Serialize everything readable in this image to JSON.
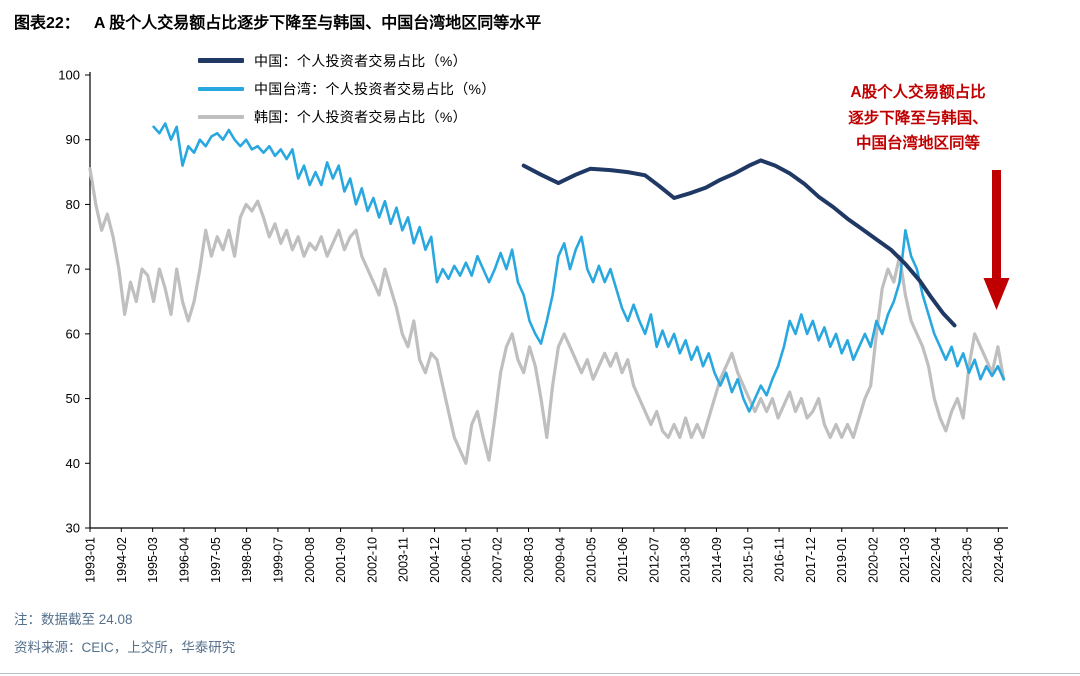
{
  "header": {
    "fig_label": "图表22：",
    "title": "A 股个人交易额占比逐步下降至与韩国、中国台湾地区同等水平"
  },
  "annotation": {
    "lines": [
      "A股个人交易额占比",
      "逐步下降至与韩国、",
      "中国台湾地区同等"
    ],
    "color": "#C00000",
    "arrow_color": "#C00000"
  },
  "notes": {
    "note1": "注：数据截至 24.08",
    "note2": "资料来源：CEIC，上交所，华泰研究"
  },
  "chart_data": {
    "type": "line",
    "title": "A 股个人交易额占比逐步下降至与韩国、中国台湾地区同等水平",
    "xlabel": "",
    "ylabel": "",
    "ylim": [
      30,
      100
    ],
    "y_ticks": [
      30,
      40,
      50,
      60,
      70,
      80,
      90,
      100
    ],
    "grid": false,
    "legend_position": "inside-top-left",
    "x_range": [
      1993.0,
      2024.75
    ],
    "x_tick_start": 1993.0,
    "x_tick_step_years": 1.0833333,
    "x_tick_labels": [
      "1993-01",
      "1994-02",
      "1995-03",
      "1996-04",
      "1997-05",
      "1998-06",
      "1999-07",
      "2000-08",
      "2001-09",
      "2002-10",
      "2003-11",
      "2004-12",
      "2006-01",
      "2007-02",
      "2008-03",
      "2009-04",
      "2010-05",
      "2011-06",
      "2012-07",
      "2013-08",
      "2014-09",
      "2015-10",
      "2016-11",
      "2017-12",
      "2019-01",
      "2020-02",
      "2021-03",
      "2022-04",
      "2023-05",
      "2024-06"
    ],
    "series": [
      {
        "id": "china",
        "name": "中国：个人投资者交易占比（%）",
        "color": "#1F3864",
        "width": 4,
        "points": [
          [
            2008.0,
            86.0
          ],
          [
            2008.6,
            84.6
          ],
          [
            2009.2,
            83.3
          ],
          [
            2009.8,
            84.6
          ],
          [
            2010.3,
            85.5
          ],
          [
            2011.0,
            85.3
          ],
          [
            2011.6,
            85.0
          ],
          [
            2012.2,
            84.5
          ],
          [
            2012.7,
            82.8
          ],
          [
            2013.2,
            81.0
          ],
          [
            2013.8,
            81.8
          ],
          [
            2014.3,
            82.6
          ],
          [
            2014.8,
            83.8
          ],
          [
            2015.3,
            84.8
          ],
          [
            2015.8,
            86.0
          ],
          [
            2016.2,
            86.8
          ],
          [
            2016.7,
            86.0
          ],
          [
            2017.2,
            84.8
          ],
          [
            2017.7,
            83.2
          ],
          [
            2018.2,
            81.2
          ],
          [
            2018.7,
            79.6
          ],
          [
            2019.2,
            77.8
          ],
          [
            2019.7,
            76.2
          ],
          [
            2020.2,
            74.6
          ],
          [
            2020.7,
            73.0
          ],
          [
            2021.2,
            70.8
          ],
          [
            2021.7,
            68.2
          ],
          [
            2022.1,
            65.6
          ],
          [
            2022.5,
            63.2
          ],
          [
            2022.9,
            61.3
          ]
        ]
      },
      {
        "id": "taiwan",
        "name": "中国台湾：个人投资者交易占比（%）",
        "color": "#29A8E0",
        "width": 2.6,
        "x_start": 1995.2,
        "x_step": 0.2,
        "values": [
          92,
          91,
          92.5,
          90,
          92,
          86,
          89,
          88,
          90,
          89,
          90.5,
          91,
          90,
          91.5,
          90,
          89,
          90,
          88.5,
          89,
          88,
          89,
          87.5,
          88.5,
          87,
          88.5,
          84,
          86,
          83,
          85,
          83,
          86.5,
          84,
          86,
          82,
          84,
          80,
          82.5,
          79,
          81,
          78,
          80.5,
          77,
          79.5,
          76,
          78,
          74,
          76.5,
          73,
          75,
          68,
          70,
          68.5,
          70.5,
          69,
          71,
          69,
          72,
          70,
          68,
          70,
          72.5,
          70,
          73,
          68,
          66,
          62,
          60,
          58.5,
          62,
          66,
          72,
          74,
          70,
          73,
          75,
          70,
          68,
          70.5,
          68,
          70,
          67,
          64,
          62,
          64.5,
          62,
          60,
          63,
          58,
          60.5,
          58,
          60,
          57,
          59,
          56,
          58,
          55,
          57,
          54,
          52,
          54,
          51,
          53,
          50,
          48,
          50,
          52,
          50.5,
          53,
          55,
          58,
          62,
          60,
          63,
          60,
          62,
          59,
          61,
          58,
          60,
          57,
          59,
          56,
          58,
          60,
          58,
          62,
          60,
          63,
          65,
          68,
          76,
          72,
          70,
          66,
          63,
          60,
          58,
          56,
          58,
          55,
          57,
          54,
          56,
          53,
          55,
          53.5,
          55,
          53
        ]
      },
      {
        "id": "korea",
        "name": "韩国：个人投资者交易占比（%）",
        "color": "#BFBFBF",
        "width": 3.2,
        "x_start": 1993.0,
        "x_step": 0.2,
        "values": [
          85.5,
          80,
          76,
          78.5,
          75,
          70,
          63,
          68,
          65,
          70,
          69,
          65,
          70,
          67,
          63,
          70,
          65,
          62,
          65,
          70,
          76,
          72,
          75,
          73,
          76,
          72,
          78,
          80,
          79,
          80.5,
          78,
          75,
          77,
          74,
          76,
          73,
          75,
          72,
          74,
          73,
          75,
          72,
          74,
          76,
          73,
          75,
          76,
          72,
          70,
          68,
          66,
          70,
          67,
          64,
          60,
          58,
          62,
          56,
          54,
          57,
          56,
          52,
          48,
          44,
          42,
          40,
          46,
          48,
          44,
          40.5,
          47,
          54,
          58,
          60,
          56,
          54,
          58,
          55,
          50,
          44,
          52,
          58,
          60,
          58,
          56,
          54,
          56,
          53,
          55,
          57,
          55,
          57,
          54,
          56,
          52,
          50,
          48,
          46,
          48,
          45,
          44,
          46,
          44,
          47,
          44,
          46,
          44,
          47,
          50,
          53,
          55,
          57,
          54,
          52,
          50,
          48,
          50,
          48,
          50,
          47,
          49,
          51,
          48,
          50,
          47,
          48,
          50,
          46,
          44,
          46,
          44,
          46,
          44,
          47,
          50,
          52,
          60,
          67,
          70,
          68,
          72,
          66,
          62,
          60,
          58,
          55,
          50,
          47,
          45,
          48,
          50,
          47,
          55,
          60,
          58,
          56,
          54,
          58,
          53
        ]
      }
    ]
  }
}
